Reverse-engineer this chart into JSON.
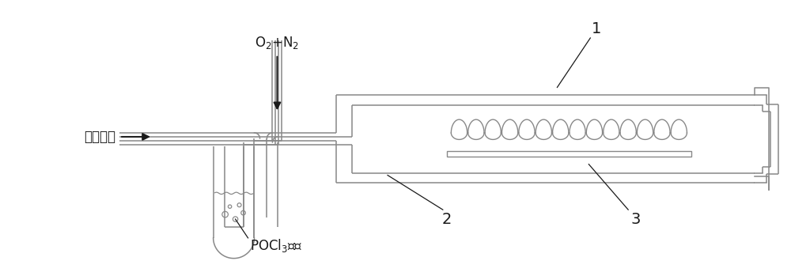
{
  "bg_color": "#ffffff",
  "line_color": "#888888",
  "dark_color": "#1a1a1a",
  "label_color": "#000000",
  "label_1": "1",
  "label_2": "2",
  "label_3": "3",
  "label_carrier": "携带气体",
  "label_pocl3": "POCl$_3$溶液",
  "font_size_label": 12,
  "font_size_num": 14
}
